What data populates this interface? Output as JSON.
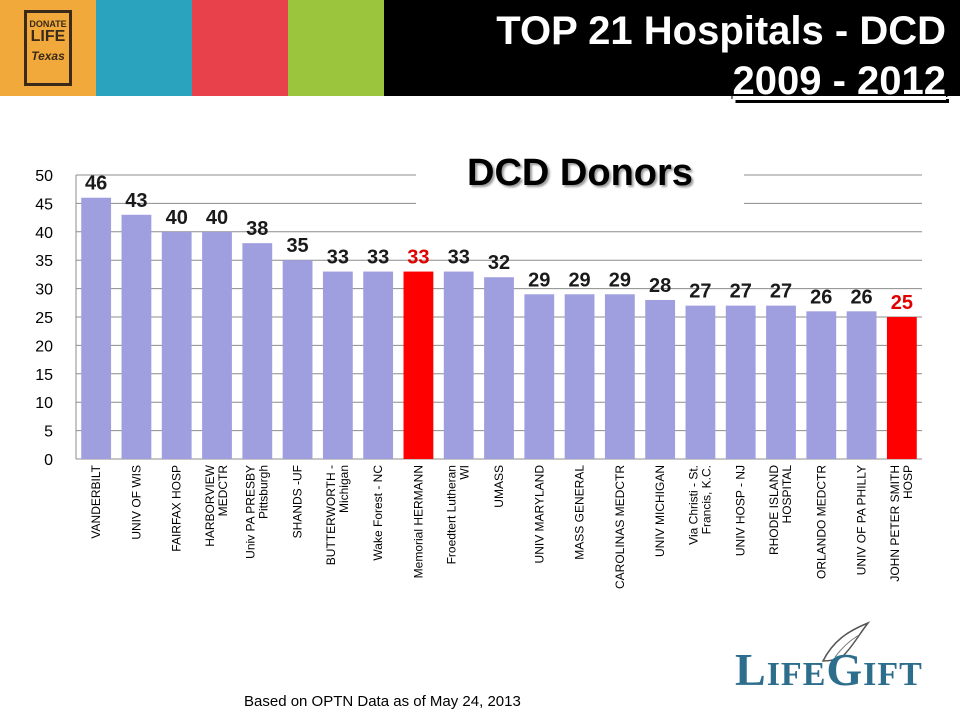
{
  "header": {
    "title_line1": "TOP 21 Hospitals - DCD",
    "title_line2": "2009 - 2012",
    "color_blocks": [
      "#f2a93b",
      "#2aa3bf",
      "#e8414b",
      "#9bc53d"
    ],
    "logo": {
      "line1": "DONATE",
      "line2": "LIFE",
      "line3": "Texas"
    }
  },
  "chart_data": {
    "type": "bar",
    "title": "DCD Donors",
    "categories": [
      "VANDERBILT",
      "UNIV OF WIS",
      "FAIRFAX HOSP",
      "HARBORVIEW MEDCTR",
      "Univ PA PRESBY Pittsburgh",
      "SHANDS -UF",
      "BUTTERWORTH - Michigan",
      "Wake Forest - NC",
      "Memorial HERMANN",
      "Froedtert Lutheran WI",
      "UMASS",
      "UNIV MARYLAND",
      "MASS GENERAL",
      "CAROLINAS MEDCTR",
      "UNIV MICHIGAN",
      "Via Christi - St. Francis, K.C.",
      "UNIV HOSP - NJ",
      "RHODE ISLAND HOSPITAL",
      "ORLANDO MEDCTR",
      "UNIV OF PA PHILLY",
      "JOHN PETER SMITH HOSP"
    ],
    "values": [
      46,
      43,
      40,
      40,
      38,
      35,
      33,
      33,
      33,
      33,
      32,
      29,
      29,
      29,
      28,
      27,
      27,
      27,
      26,
      26,
      25
    ],
    "highlighted": [
      "Memorial HERMANN",
      "JOHN PETER SMITH HOSP"
    ],
    "ylim": [
      0,
      50
    ],
    "yticks": [
      0,
      5,
      10,
      15,
      20,
      25,
      30,
      35,
      40,
      45,
      50
    ],
    "grid": true,
    "colors": {
      "bar": "#9f9fdf",
      "highlight": "#ff0000",
      "label": "#1a1a1a",
      "highlight_label": "#e00000"
    }
  },
  "footer": {
    "note": "Based on OPTN Data as of May 24, 2013"
  },
  "brand": {
    "logo_text": "LifeGift"
  }
}
